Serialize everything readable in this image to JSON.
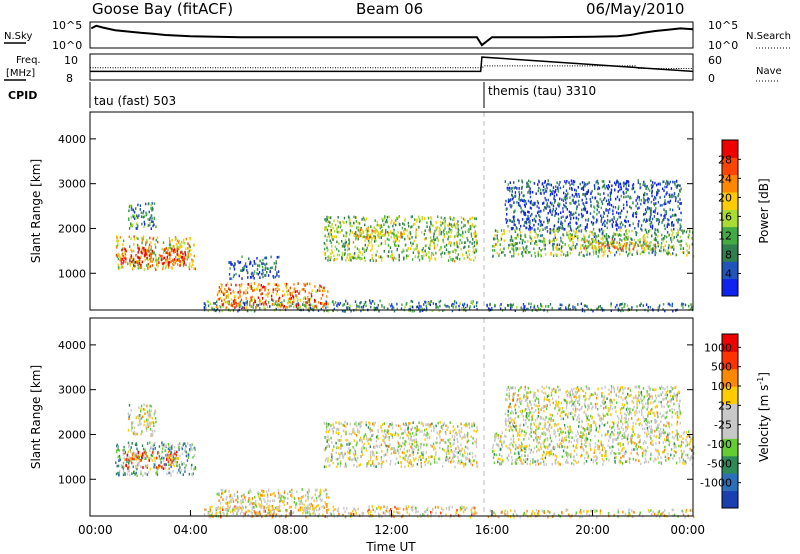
{
  "header": {
    "station": "Goose Bay (fitACF)",
    "beam": "Beam 06",
    "date": "06/May/2010"
  },
  "chart_data": [
    {
      "type": "line",
      "panel": "noise",
      "left_label": "N.Sky",
      "right_label": "N.Search",
      "left_ticks": [
        "10^5",
        "10^0"
      ],
      "right_ticks": [
        "10^5",
        "10^0"
      ],
      "series": [
        {
          "name": "N.Sky",
          "x": [
            0.05,
            0.25,
            0.5,
            1.0,
            1.5,
            2.0,
            2.5,
            3.0,
            4.0,
            6.0,
            8.0,
            10.0,
            12.0,
            14.0,
            15.4,
            15.6,
            16.0,
            18.0,
            20.0,
            21.0,
            21.5,
            22.0,
            22.5,
            23.0,
            23.5,
            24.0
          ],
          "y": [
            4.0,
            4.6,
            4.2,
            3.6,
            3.3,
            3.0,
            2.8,
            2.5,
            2.2,
            2.0,
            2.0,
            2.0,
            2.0,
            2.0,
            2.0,
            0.2,
            2.0,
            2.0,
            2.1,
            2.2,
            2.5,
            3.0,
            3.4,
            3.7,
            4.0,
            3.8
          ]
        }
      ]
    },
    {
      "type": "line",
      "panel": "frequency",
      "left_label": "Freq.",
      "left_unit": "[MHz]",
      "right_label": "Nave",
      "left_ticks": [
        "10",
        "8"
      ],
      "right_ticks": [
        "60",
        "0"
      ],
      "series": [
        {
          "name": "Freq",
          "x": [
            0,
            15.55,
            15.6,
            24
          ],
          "y": [
            8.6,
            8.6,
            9.9,
            8.6
          ]
        },
        {
          "name": "Nave",
          "x": [
            0,
            15.6,
            15.7,
            21.7,
            21.8,
            24
          ],
          "y": [
            28,
            28,
            33,
            33,
            26,
            26
          ]
        }
      ]
    },
    {
      "type": "table",
      "panel": "cpid",
      "label": "CPID",
      "segments": [
        {
          "start": 0,
          "end": 15.6,
          "name": "tau (fast) 503"
        },
        {
          "start": 15.6,
          "end": 24,
          "name": "themis (tau) 3310"
        }
      ]
    },
    {
      "type": "heatmap",
      "panel": "power",
      "ylabel": "Slant Range [km]",
      "ylim": [
        180,
        4600
      ],
      "xlim": [
        0,
        24
      ],
      "yticks": [
        "1000",
        "2000",
        "3000",
        "4000"
      ],
      "colorbar_label": "Power [dB]",
      "colorbar_ticks": [
        "4",
        "8",
        "12",
        "16",
        "20",
        "24",
        "28"
      ],
      "colors": [
        "#1122ee",
        "#2255bb",
        "#2f7f4f",
        "#44aa44",
        "#aadd33",
        "#ffcc00",
        "#ff8800",
        "#ff4400",
        "#ee0000"
      ],
      "regions": [
        {
          "t0": 1.0,
          "t1": 4.2,
          "r0": 1100,
          "r1": 1850,
          "level": 0.6
        },
        {
          "t0": 1.2,
          "t1": 3.8,
          "r0": 1200,
          "r1": 1600,
          "level": 0.95
        },
        {
          "t0": 1.5,
          "t1": 2.6,
          "r0": 2000,
          "r1": 2600,
          "level": 0.3
        },
        {
          "t0": 4.5,
          "t1": 15.4,
          "r0": 180,
          "r1": 420,
          "level": 0.3
        },
        {
          "t0": 5.0,
          "t1": 9.5,
          "r0": 250,
          "r1": 800,
          "level": 0.75
        },
        {
          "t0": 5.5,
          "t1": 7.5,
          "r0": 900,
          "r1": 1400,
          "level": 0.2
        },
        {
          "t0": 9.3,
          "t1": 15.4,
          "r0": 1300,
          "r1": 2300,
          "level": 0.45
        },
        {
          "t0": 10.5,
          "t1": 12.5,
          "r0": 1800,
          "r1": 2000,
          "level": 0.65
        },
        {
          "t0": 15.7,
          "t1": 24.0,
          "r0": 180,
          "r1": 350,
          "level": 0.25
        },
        {
          "t0": 16.0,
          "t1": 24.0,
          "r0": 1400,
          "r1": 2000,
          "level": 0.4
        },
        {
          "t0": 19.5,
          "t1": 22.5,
          "r0": 1500,
          "r1": 1800,
          "level": 0.6
        },
        {
          "t0": 16.5,
          "t1": 23.5,
          "r0": 2000,
          "r1": 3100,
          "level": 0.15
        }
      ]
    },
    {
      "type": "heatmap",
      "panel": "velocity",
      "ylabel": "Slant Range [km]",
      "xlabel": "Time UT",
      "ylim": [
        180,
        4600
      ],
      "xlim": [
        0,
        24
      ],
      "yticks": [
        "1000",
        "2000",
        "3000",
        "4000"
      ],
      "xticks": [
        "00:00",
        "04:00",
        "08:00",
        "12:00",
        "16:00",
        "20:00",
        "00:00"
      ],
      "colorbar_label": "Velocity [m s-1]",
      "colorbar_label_unit": "[m s",
      "colorbar_label_sup": "-1",
      "colorbar_label_tail": "]",
      "colorbar_title": "Velocity",
      "colorbar_ticks": [
        "1000",
        "500",
        "100",
        "25",
        "-25",
        "-100",
        "-500",
        "-1000"
      ],
      "colors": [
        "#1a3fb0",
        "#2a6fb8",
        "#2e8b57",
        "#66cc33",
        "#c8c8c8",
        "#c8c8c8",
        "#ffcc00",
        "#ff8800",
        "#ff3300",
        "#ee0000"
      ],
      "regions": [
        {
          "t0": 1.0,
          "t1": 4.2,
          "r0": 1100,
          "r1": 1850,
          "level": 0.35
        },
        {
          "t0": 1.3,
          "t1": 3.5,
          "r0": 1250,
          "r1": 1650,
          "level": 0.75
        },
        {
          "t0": 1.5,
          "t1": 2.6,
          "r0": 2000,
          "r1": 2700,
          "level": 0.5
        },
        {
          "t0": 4.5,
          "t1": 15.4,
          "r0": 180,
          "r1": 420,
          "level": 0.6
        },
        {
          "t0": 5.0,
          "t1": 9.5,
          "r0": 250,
          "r1": 800,
          "level": 0.55
        },
        {
          "t0": 9.3,
          "t1": 15.4,
          "r0": 1300,
          "r1": 2300,
          "level": 0.5
        },
        {
          "t0": 15.7,
          "t1": 24.0,
          "r0": 180,
          "r1": 350,
          "level": 0.55
        },
        {
          "t0": 16.0,
          "t1": 24.0,
          "r0": 1350,
          "r1": 2100,
          "level": 0.5
        },
        {
          "t0": 16.5,
          "t1": 23.5,
          "r0": 2100,
          "r1": 3100,
          "level": 0.5
        }
      ]
    }
  ]
}
